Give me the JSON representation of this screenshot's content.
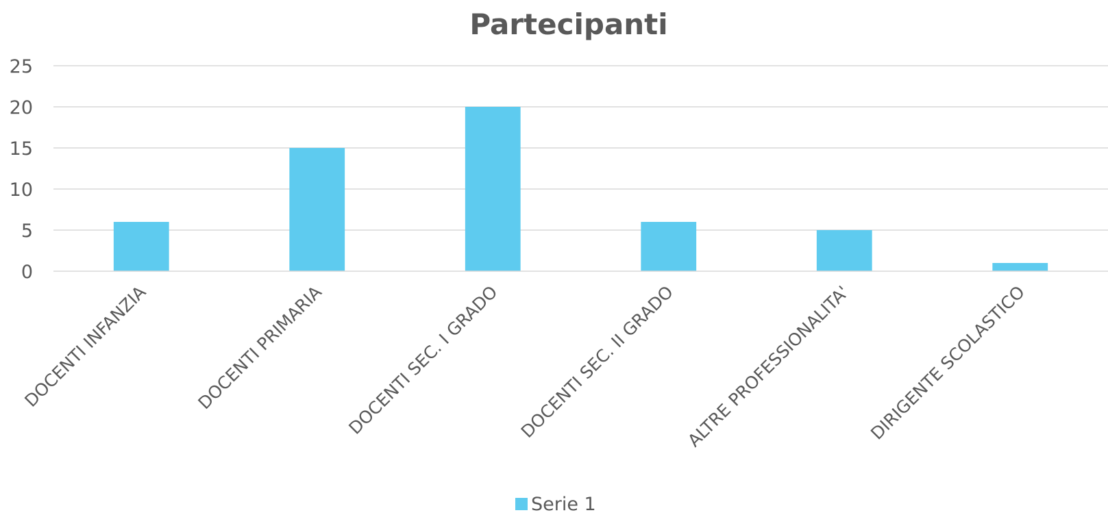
{
  "chart_data": {
    "type": "bar",
    "title": "Partecipanti",
    "xlabel": "",
    "ylabel": "",
    "categories": [
      "DOCENTI INFANZIA",
      "DOCENTI PRIMARIA",
      "DOCENTI SEC. I GRADO",
      "DOCENTI SEC. II GRADO",
      "ALTRE PROFESSIONALITA'",
      "DIRIGENTE SCOLASTICO"
    ],
    "series": [
      {
        "name": "Serie 1",
        "values": [
          6,
          15,
          20,
          6,
          5,
          1
        ],
        "color": "#5ecbef"
      }
    ],
    "ylim": [
      0,
      25
    ],
    "yticks": [
      0,
      5,
      10,
      15,
      20,
      25
    ],
    "grid": true,
    "legend": "bottom-center"
  }
}
